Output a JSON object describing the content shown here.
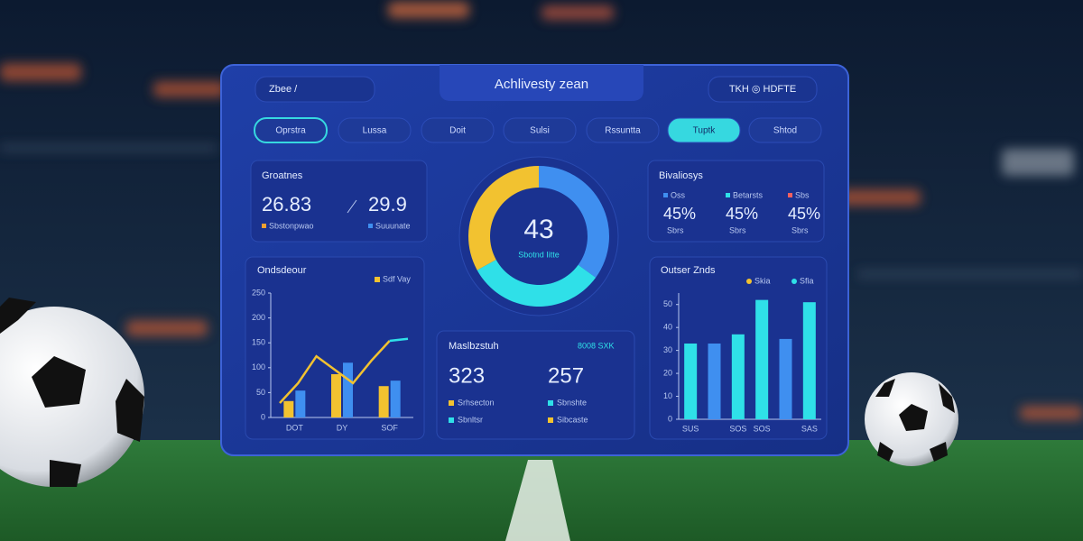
{
  "header": {
    "menu": "Zbee /",
    "title": "Achlivesty zean",
    "right": "TKH ◎ HDFTE"
  },
  "tabs": {
    "items": [
      "Oprstra",
      "Lussa",
      "Doit",
      "Sulsi",
      "Rssuntta",
      "Tuptk",
      "Shtod"
    ],
    "outlined": 0,
    "active": 5
  },
  "stats": {
    "title": "Groatnes",
    "items": [
      {
        "value": "26.83",
        "label": "Sbstonpwao",
        "color": "#f2a030"
      },
      {
        "value": "29.9",
        "label": "Suuunate",
        "color": "#3f8ff0"
      }
    ]
  },
  "donut": {
    "value": "43",
    "label": "Sbotnd Iitte",
    "segments": [
      {
        "color": "#3f8ff0",
        "value": 35
      },
      {
        "color": "#2fe0e8",
        "value": 32
      },
      {
        "color": "#f2c230",
        "value": 33
      }
    ]
  },
  "bivaliosys": {
    "title": "Bivaliosys",
    "items": [
      {
        "legend": "Oss",
        "color": "#3f8ff0",
        "value": "45%",
        "label": "Sbrs"
      },
      {
        "legend": "Betarsts",
        "color": "#2fe0e8",
        "value": "45%",
        "label": "Sbrs"
      },
      {
        "legend": "Sbs",
        "color": "#f06060",
        "value": "45%",
        "label": "Sbrs"
      }
    ]
  },
  "left_chart": {
    "title": "Ondsdeour",
    "legend": "Sdf Vay",
    "categories": [
      "DOT",
      "DY",
      "SOF"
    ],
    "ylim": [
      0,
      250
    ],
    "yticks": [
      0,
      50,
      100,
      150,
      200,
      250
    ],
    "series": [
      {
        "color": "#f2c230",
        "values": [
          33,
          87,
          63
        ]
      },
      {
        "color": "#3f8ff0",
        "values": [
          54,
          110,
          74
        ]
      }
    ],
    "lines": [
      {
        "color": "#f2c230",
        "values": [
          29,
          69,
          123,
          96,
          69,
          114,
          154,
          null
        ]
      },
      {
        "color": "#2fe0e8",
        "values": [
          null,
          null,
          null,
          null,
          null,
          null,
          154,
          158
        ]
      }
    ]
  },
  "middle": {
    "title": "Maslbzstuh",
    "legend": "8008 SXK",
    "values": [
      "323",
      "257"
    ],
    "legends": [
      {
        "label": "Srhsecton",
        "color": "#f2c230"
      },
      {
        "label": "Sbnshte",
        "color": "#2fe0e8"
      },
      {
        "label": "Sbnltsr",
        "color": "#2fe0e8"
      },
      {
        "label": "Sibcaste",
        "color": "#f2c230"
      }
    ]
  },
  "right_chart": {
    "title": "Outser Znds",
    "legend": [
      {
        "name": "Skia",
        "color": "#f2c230"
      },
      {
        "name": "Sfia",
        "color": "#2fe0e8"
      }
    ],
    "categories": [
      "SUS",
      null,
      "SOS",
      "SOS",
      null,
      "SAS"
    ],
    "ylim": [
      0,
      55
    ],
    "yticks": [
      0,
      10,
      20,
      30,
      40,
      50
    ],
    "values": [
      33,
      33,
      37,
      52,
      35,
      51
    ],
    "colors": [
      "#2fe0e8",
      "#3f8ff0",
      "#2fe0e8",
      "#2fe0e8",
      "#3f8ff0",
      "#2fe0e8"
    ]
  }
}
